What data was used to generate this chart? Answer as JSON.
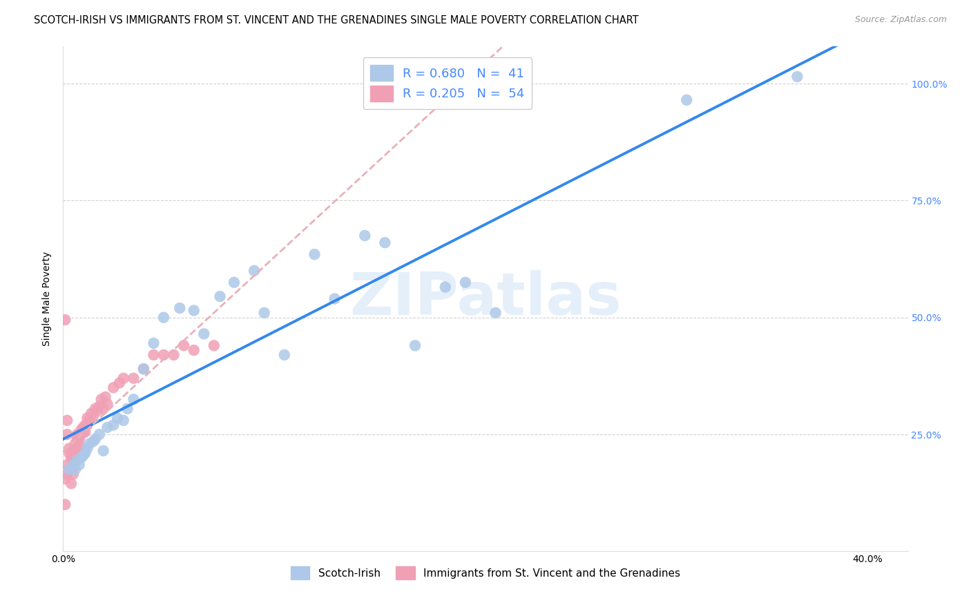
{
  "title": "SCOTCH-IRISH VS IMMIGRANTS FROM ST. VINCENT AND THE GRENADINES SINGLE MALE POVERTY CORRELATION CHART",
  "source": "Source: ZipAtlas.com",
  "ylabel": "Single Male Poverty",
  "xlim": [
    0.0,
    0.42
  ],
  "ylim": [
    0.0,
    1.08
  ],
  "blue_color": "#adc8e8",
  "pink_color": "#f0a0b5",
  "blue_line_color": "#3388ee",
  "pink_line_color": "#e8b0b8",
  "right_tick_color": "#4488ff",
  "watermark": "ZIPatlas",
  "R_blue": 0.68,
  "N_blue": 41,
  "R_pink": 0.205,
  "N_pink": 54,
  "legend_label_blue": "Scotch-Irish",
  "legend_label_pink": "Immigrants from St. Vincent and the Grenadines",
  "blue_x": [
    0.003,
    0.005,
    0.006,
    0.007,
    0.008,
    0.009,
    0.01,
    0.011,
    0.012,
    0.013,
    0.015,
    0.016,
    0.018,
    0.02,
    0.022,
    0.025,
    0.027,
    0.03,
    0.032,
    0.035,
    0.04,
    0.045,
    0.05,
    0.058,
    0.065,
    0.07,
    0.078,
    0.085,
    0.095,
    0.1,
    0.11,
    0.125,
    0.135,
    0.15,
    0.16,
    0.175,
    0.19,
    0.2,
    0.215,
    0.31,
    0.365
  ],
  "blue_y": [
    0.175,
    0.185,
    0.175,
    0.195,
    0.185,
    0.2,
    0.205,
    0.21,
    0.22,
    0.23,
    0.235,
    0.24,
    0.25,
    0.215,
    0.265,
    0.27,
    0.285,
    0.28,
    0.305,
    0.325,
    0.39,
    0.445,
    0.5,
    0.52,
    0.515,
    0.465,
    0.545,
    0.575,
    0.6,
    0.51,
    0.42,
    0.635,
    0.54,
    0.675,
    0.66,
    0.44,
    0.565,
    0.575,
    0.51,
    0.965,
    1.015
  ],
  "pink_x": [
    0.001,
    0.001,
    0.001,
    0.002,
    0.002,
    0.002,
    0.002,
    0.003,
    0.003,
    0.003,
    0.004,
    0.004,
    0.004,
    0.005,
    0.005,
    0.005,
    0.006,
    0.006,
    0.006,
    0.007,
    0.007,
    0.007,
    0.008,
    0.008,
    0.008,
    0.009,
    0.009,
    0.01,
    0.01,
    0.011,
    0.011,
    0.012,
    0.012,
    0.013,
    0.014,
    0.015,
    0.016,
    0.017,
    0.018,
    0.019,
    0.02,
    0.021,
    0.022,
    0.025,
    0.028,
    0.03,
    0.035,
    0.04,
    0.045,
    0.05,
    0.055,
    0.06,
    0.065,
    0.075
  ],
  "pink_y": [
    0.495,
    0.155,
    0.1,
    0.165,
    0.185,
    0.28,
    0.25,
    0.175,
    0.21,
    0.22,
    0.145,
    0.175,
    0.2,
    0.165,
    0.195,
    0.215,
    0.195,
    0.215,
    0.23,
    0.22,
    0.24,
    0.25,
    0.225,
    0.24,
    0.245,
    0.25,
    0.26,
    0.265,
    0.255,
    0.27,
    0.255,
    0.27,
    0.285,
    0.28,
    0.295,
    0.29,
    0.305,
    0.3,
    0.31,
    0.325,
    0.305,
    0.33,
    0.315,
    0.35,
    0.36,
    0.37,
    0.37,
    0.39,
    0.42,
    0.42,
    0.42,
    0.44,
    0.43,
    0.44
  ],
  "title_fontsize": 10.5,
  "tick_fontsize": 10
}
